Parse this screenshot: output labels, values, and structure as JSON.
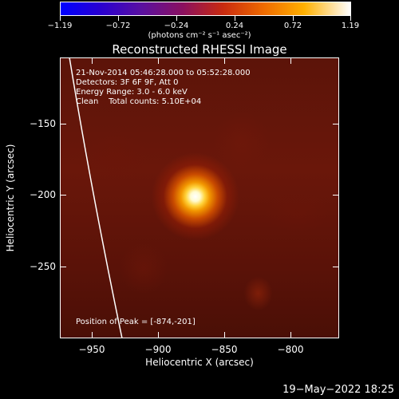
{
  "colorbar": {
    "ticks": [
      "−1.19",
      "−0.72",
      "−0.24",
      "0.24",
      "0.72",
      "1.19"
    ],
    "unit_label": "(photons cm⁻² s⁻¹ asec⁻²)",
    "colors": [
      "#0000ff",
      "#8a1060",
      "#ef6a00",
      "#ffffff"
    ]
  },
  "title": "Reconstructed RHESSI Image",
  "info": {
    "line1": "21-Nov-2014 05:46:28.000 to 05:52:28.000",
    "line2": "Detectors: 3F 6F 9F, Att 0",
    "line3": "Energy Range: 3.0 - 6.0 keV",
    "line4": "Clean    Total counts: 5.10E+04",
    "peak": "Position of Peak = [-874,-201]"
  },
  "x_axis": {
    "title": "Heliocentric X (arcsec)",
    "ticks": [
      "−950",
      "−900",
      "−850",
      "−800"
    ]
  },
  "y_axis": {
    "title": "Heliocentric Y (arcsec)",
    "ticks": [
      "−150",
      "−200",
      "−250"
    ]
  },
  "footer_date": "19−May−2022 18:25"
}
